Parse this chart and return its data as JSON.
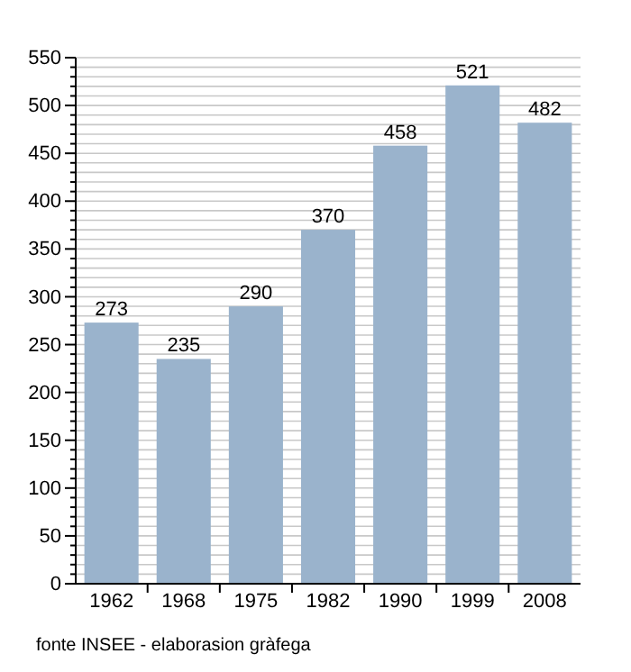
{
  "chart_data": {
    "type": "bar",
    "categories": [
      "1962",
      "1968",
      "1975",
      "1982",
      "1990",
      "1999",
      "2008"
    ],
    "values": [
      273,
      235,
      290,
      370,
      458,
      521,
      482
    ],
    "color": "#9ab3cc",
    "data_labels": true,
    "grid": "y",
    "ylim": [
      0,
      550
    ],
    "yticks": [
      0,
      {
        "value": 10,
        "label": null
      },
      {
        "value": 20,
        "label": null
      },
      {
        "value": 30,
        "label": null
      },
      {
        "value": 40,
        "label": null
      },
      50,
      {
        "value": 60,
        "label": null
      },
      {
        "value": 70,
        "label": null
      },
      {
        "value": 80,
        "label": null
      },
      {
        "value": 90,
        "label": null
      },
      100,
      {
        "value": 110,
        "label": null
      },
      {
        "value": 120,
        "label": null
      },
      {
        "value": 130,
        "label": null
      },
      {
        "value": 140,
        "label": null
      },
      150,
      {
        "value": 160,
        "label": null
      },
      {
        "value": 170,
        "label": null
      },
      {
        "value": 180,
        "label": null
      },
      {
        "value": 190,
        "label": null
      },
      200,
      {
        "value": 210,
        "label": null
      },
      {
        "value": 220,
        "label": null
      },
      {
        "value": 230,
        "label": null
      },
      {
        "value": 240,
        "label": null
      },
      250,
      {
        "value": 260,
        "label": null
      },
      {
        "value": 270,
        "label": null
      },
      {
        "value": 280,
        "label": null
      },
      {
        "value": 290,
        "label": null
      },
      300,
      {
        "value": 310,
        "label": null
      },
      {
        "value": 320,
        "label": null
      },
      {
        "value": 330,
        "label": null
      },
      {
        "value": 340,
        "label": null
      },
      350,
      {
        "value": 360,
        "label": null
      },
      {
        "value": 370,
        "label": null
      },
      {
        "value": 380,
        "label": null
      },
      {
        "value": 390,
        "label": null
      },
      400,
      {
        "value": 410,
        "label": null
      },
      {
        "value": 420,
        "label": null
      },
      {
        "value": 430,
        "label": null
      },
      {
        "value": 440,
        "label": null
      },
      450,
      {
        "value": 460,
        "label": null
      },
      {
        "value": 470,
        "label": null
      },
      {
        "value": 480,
        "label": null
      },
      {
        "value": 490,
        "label": null
      },
      500,
      {
        "value": 510,
        "label": null
      },
      {
        "value": 520,
        "label": null
      },
      {
        "value": 530,
        "label": null
      },
      {
        "value": 540,
        "label": null
      },
      550
    ],
    "annotations": [
      "fonte INSEE - elaborasion gràfega"
    ]
  }
}
